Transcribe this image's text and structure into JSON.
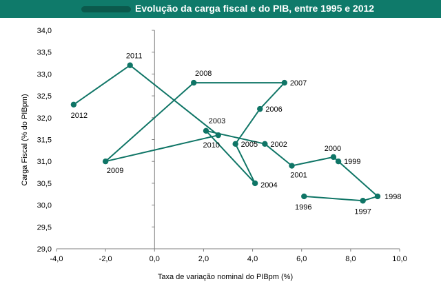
{
  "chart_data": {
    "type": "scatter",
    "connected": true,
    "title": "Evolução da carga fiscal e do PIB, entre 1995 e 2012",
    "xlabel": "Taxa de variação nominal do PIBpm (%)",
    "ylabel": "Carga Fiscal (% do PIBpm)",
    "xlim": [
      -4.0,
      10.0
    ],
    "ylim": [
      29.0,
      34.0
    ],
    "xticks": [
      "-4,0",
      "-2,0",
      "0,0",
      "2,0",
      "4,0",
      "6,0",
      "8,0",
      "10,0"
    ],
    "yticks": [
      "29,0",
      "29,5",
      "30,0",
      "30,5",
      "31,0",
      "31,5",
      "32,0",
      "32,5",
      "33,0",
      "33,5",
      "34,0"
    ],
    "points": [
      {
        "label": "1996",
        "x": 6.1,
        "y": 30.2
      },
      {
        "label": "1997",
        "x": 8.5,
        "y": 30.1
      },
      {
        "label": "1998",
        "x": 9.1,
        "y": 30.2
      },
      {
        "label": "1999",
        "x": 7.5,
        "y": 31.0
      },
      {
        "label": "2000",
        "x": 7.3,
        "y": 31.1
      },
      {
        "label": "2001",
        "x": 5.6,
        "y": 30.9
      },
      {
        "label": "2002",
        "x": 4.5,
        "y": 31.4
      },
      {
        "label": "2003",
        "x": 2.1,
        "y": 31.7
      },
      {
        "label": "2004",
        "x": 4.1,
        "y": 30.5
      },
      {
        "label": "2005",
        "x": 3.3,
        "y": 31.4
      },
      {
        "label": "2006",
        "x": 4.3,
        "y": 32.2
      },
      {
        "label": "2007",
        "x": 5.3,
        "y": 32.8
      },
      {
        "label": "2008",
        "x": 1.6,
        "y": 32.8
      },
      {
        "label": "2009",
        "x": -2.0,
        "y": 31.0
      },
      {
        "label": "2010",
        "x": 2.6,
        "y": 31.6
      },
      {
        "label": "2011",
        "x": -1.0,
        "y": 33.2
      },
      {
        "label": "2012",
        "x": -3.3,
        "y": 32.3
      }
    ],
    "series_color": "#0f7566",
    "title_bar_color": "#0f7a6a",
    "grid": false
  }
}
